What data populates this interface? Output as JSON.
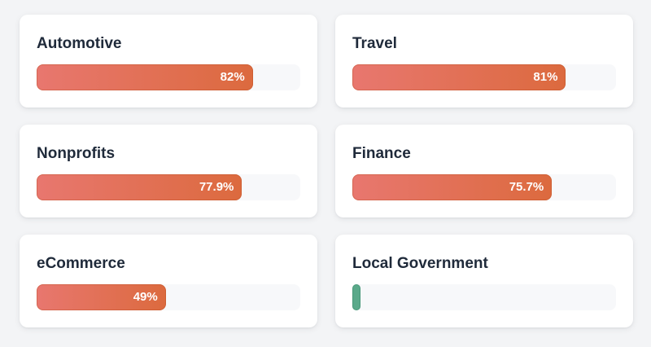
{
  "cards": [
    {
      "title": "Automotive",
      "value": 82,
      "label": "82%",
      "status": "high"
    },
    {
      "title": "Travel",
      "value": 81,
      "label": "81%",
      "status": "high"
    },
    {
      "title": "Nonprofits",
      "value": 77.9,
      "label": "77.9%",
      "status": "high"
    },
    {
      "title": "Finance",
      "value": 75.7,
      "label": "75.7%",
      "status": "high"
    },
    {
      "title": "eCommerce",
      "value": 49,
      "label": "49%",
      "status": "high"
    },
    {
      "title": "Local Government",
      "value": 3,
      "label": "",
      "status": "low"
    }
  ],
  "colors": {
    "fill_start": "#e8776f",
    "fill_end": "#dc6a3e",
    "low_fill": "#5aa98a",
    "track": "#f7f8fa",
    "title_text": "#1f2a3a"
  }
}
